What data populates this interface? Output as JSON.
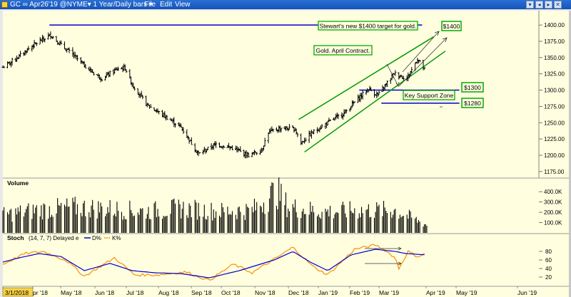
{
  "window": {
    "title": "GC ∞ Apr26'19 @NYME▾  1 Year/Daily bars ▾",
    "menus": [
      "File",
      "Edit",
      "View"
    ],
    "buttons": [
      "▾",
      "◂",
      "▸",
      "✕"
    ]
  },
  "colors": {
    "background": "#FFFFE0",
    "bars": "#000000",
    "channel": "#009900",
    "levels": "#0000CC",
    "d_line": "#0000CC",
    "k_line": "#FF8C00",
    "box_border": "#00AA00"
  },
  "chart_data": [
    {
      "type": "ohlc",
      "ylim": [
        1165,
        1422
      ],
      "y_ticks": [
        "1400.00",
        "1375.00",
        "1350.00",
        "1325.00",
        "1300.00",
        "1275.00",
        "1250.00",
        "1225.00",
        "1200.00",
        "1175.00"
      ],
      "x_labels": [
        "3/1/2018",
        "pr '18",
        "May '18",
        "Jun '18",
        "Jul '18",
        "Aug '18",
        "Sep '18",
        "Oct '18",
        "Nov '18",
        "Dec '18",
        "Jan '19",
        "Feb '19",
        "Mar '19",
        "Apr '19",
        "May '19",
        "Jun '19"
      ],
      "x_range": [
        "2018-03-01",
        "2019-06-30"
      ],
      "series": [
        {
          "name": "price",
          "points": [
            [
              "2018-03-01",
              1335
            ],
            [
              "2018-03-15",
              1352
            ],
            [
              "2018-03-26",
              1368
            ],
            [
              "2018-04-11",
              1385
            ],
            [
              "2018-04-20",
              1369
            ],
            [
              "2018-05-01",
              1353
            ],
            [
              "2018-05-15",
              1330
            ],
            [
              "2018-05-25",
              1318
            ],
            [
              "2018-06-08",
              1333
            ],
            [
              "2018-06-14",
              1334
            ],
            [
              "2018-06-20",
              1309
            ],
            [
              "2018-07-03",
              1277
            ],
            [
              "2018-07-18",
              1260
            ],
            [
              "2018-08-01",
              1243
            ],
            [
              "2018-08-16",
              1202
            ],
            [
              "2018-08-31",
              1217
            ],
            [
              "2018-09-14",
              1211
            ],
            [
              "2018-09-28",
              1200
            ],
            [
              "2018-10-09",
              1208
            ],
            [
              "2018-10-15",
              1235
            ],
            [
              "2018-10-26",
              1242
            ],
            [
              "2018-11-07",
              1240
            ],
            [
              "2018-11-12",
              1219
            ],
            [
              "2018-11-22",
              1235
            ],
            [
              "2018-12-05",
              1250
            ],
            [
              "2018-12-19",
              1265
            ],
            [
              "2018-12-31",
              1287
            ],
            [
              "2019-01-09",
              1302
            ],
            [
              "2019-01-17",
              1292
            ],
            [
              "2019-01-31",
              1326
            ],
            [
              "2019-02-11",
              1318
            ],
            [
              "2019-02-20",
              1348
            ],
            [
              "2019-02-26",
              1332
            ]
          ]
        }
      ],
      "lines": [
        {
          "name": "stewart_target",
          "from": [
            "2018-04-10",
            1400
          ],
          "to": [
            "2019-02-24",
            1400
          ]
        },
        {
          "name": "support_1300",
          "from": [
            "2019-01-01",
            1300
          ],
          "to": [
            "2019-03-28",
            1300
          ]
        },
        {
          "name": "support_1280",
          "from": [
            "2019-01-20",
            1280
          ],
          "to": [
            "2019-03-28",
            1280
          ]
        },
        {
          "name": "channel_upper",
          "from": [
            "2018-11-10",
            1255
          ],
          "to": [
            "2019-03-06",
            1382
          ]
        },
        {
          "name": "channel_lower",
          "from": [
            "2018-11-15",
            1205
          ],
          "to": [
            "2019-03-16",
            1360
          ]
        }
      ],
      "annotations": {
        "target": "Stewart's new $1400 target for gold.",
        "gold_april": "Gold. April Contract.",
        "key_support": "Key Support Zone",
        "label_1400": "$1400",
        "label_1300": "$1300",
        "label_1280": "$1280"
      }
    },
    {
      "type": "bar",
      "title": "Volume",
      "y_ticks": [
        "400.0K",
        "300.0K",
        "200.0K",
        "100.0K"
      ],
      "ylim": [
        0,
        470
      ],
      "unit": "K",
      "series": [
        {
          "name": "Volume",
          "points": [
            [
              "2018-03-01",
              180
            ],
            [
              "2018-04-01",
              230
            ],
            [
              "2018-05-01",
              255
            ],
            [
              "2018-06-01",
              240
            ],
            [
              "2018-07-01",
              215
            ],
            [
              "2018-08-01",
              245
            ],
            [
              "2018-09-01",
              215
            ],
            [
              "2018-10-01",
              225
            ],
            [
              "2018-10-22",
              420
            ],
            [
              "2018-11-01",
              260
            ],
            [
              "2018-12-01",
              210
            ],
            [
              "2019-01-01",
              225
            ],
            [
              "2019-02-01",
              225
            ],
            [
              "2019-02-28",
              80
            ]
          ]
        }
      ]
    },
    {
      "type": "line",
      "title": "Stoch",
      "params": "(14, 7, 7) Delayed e",
      "legend": [
        "D%",
        "K%"
      ],
      "y_ticks": [
        "80",
        "60",
        "40",
        "20"
      ],
      "ylim": [
        0,
        100
      ],
      "series": [
        {
          "name": "D%",
          "points": [
            [
              "2018-03-01",
              55
            ],
            [
              "2018-03-15",
              65
            ],
            [
              "2018-04-01",
              75
            ],
            [
              "2018-04-20",
              68
            ],
            [
              "2018-05-10",
              35
            ],
            [
              "2018-06-01",
              52
            ],
            [
              "2018-06-20",
              35
            ],
            [
              "2018-07-10",
              30
            ],
            [
              "2018-08-01",
              28
            ],
            [
              "2018-08-25",
              18
            ],
            [
              "2018-09-20",
              35
            ],
            [
              "2018-10-20",
              60
            ],
            [
              "2018-11-05",
              80
            ],
            [
              "2018-11-20",
              55
            ],
            [
              "2018-12-05",
              35
            ],
            [
              "2018-12-25",
              72
            ],
            [
              "2019-01-15",
              85
            ],
            [
              "2019-02-01",
              80
            ],
            [
              "2019-02-10",
              75
            ],
            [
              "2019-02-27",
              72
            ]
          ]
        },
        {
          "name": "K%",
          "points": [
            [
              "2018-03-01",
              50
            ],
            [
              "2018-03-20",
              75
            ],
            [
              "2018-04-05",
              80
            ],
            [
              "2018-04-25",
              58
            ],
            [
              "2018-05-10",
              22
            ],
            [
              "2018-06-05",
              65
            ],
            [
              "2018-06-22",
              25
            ],
            [
              "2018-07-12",
              25
            ],
            [
              "2018-08-05",
              32
            ],
            [
              "2018-08-25",
              12
            ],
            [
              "2018-09-15",
              50
            ],
            [
              "2018-10-01",
              30
            ],
            [
              "2018-10-25",
              70
            ],
            [
              "2018-11-05",
              90
            ],
            [
              "2018-11-22",
              45
            ],
            [
              "2018-12-05",
              25
            ],
            [
              "2018-12-28",
              85
            ],
            [
              "2019-01-15",
              95
            ],
            [
              "2019-01-22",
              85
            ],
            [
              "2019-02-01",
              65
            ],
            [
              "2019-02-04",
              40
            ],
            [
              "2019-02-12",
              80
            ],
            [
              "2019-02-20",
              68
            ],
            [
              "2019-02-27",
              75
            ]
          ]
        }
      ]
    }
  ]
}
